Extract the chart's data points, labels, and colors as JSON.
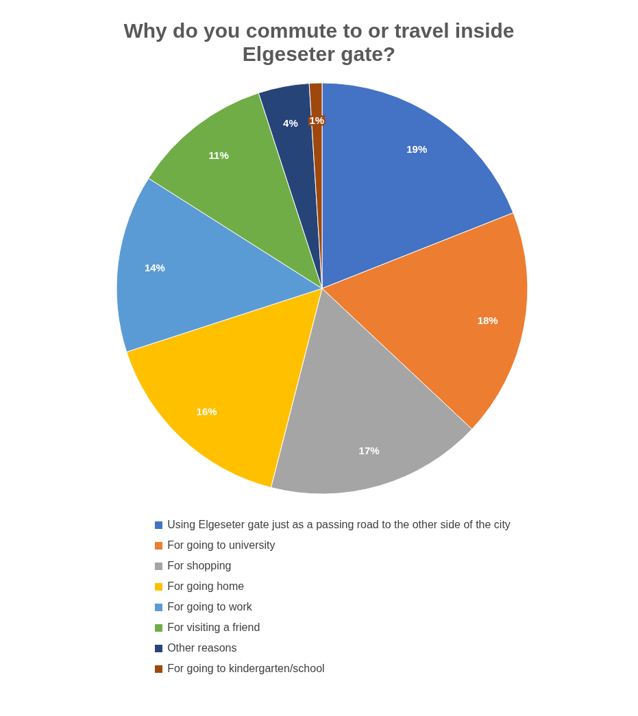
{
  "chart_data": {
    "type": "pie",
    "title": "Why do you commute to or travel inside Elgeseter gate?",
    "categories": [
      "Using Elgeseter gate just as a passing road to the other side of the city",
      "For going to university",
      "For shopping",
      "For going home",
      "For going to work",
      "For visiting a friend",
      "Other reasons",
      "For going to kindergarten/school"
    ],
    "values": [
      19,
      18,
      17,
      16,
      14,
      11,
      4,
      1
    ],
    "value_labels": [
      "19%",
      "18%",
      "17%",
      "16%",
      "14%",
      "11%",
      "4%",
      "1%"
    ],
    "colors": [
      "#4472c4",
      "#ed7d31",
      "#a5a5a5",
      "#ffc000",
      "#5b9bd5",
      "#70ad47",
      "#264478",
      "#9e480e"
    ],
    "legend": "bottom"
  }
}
